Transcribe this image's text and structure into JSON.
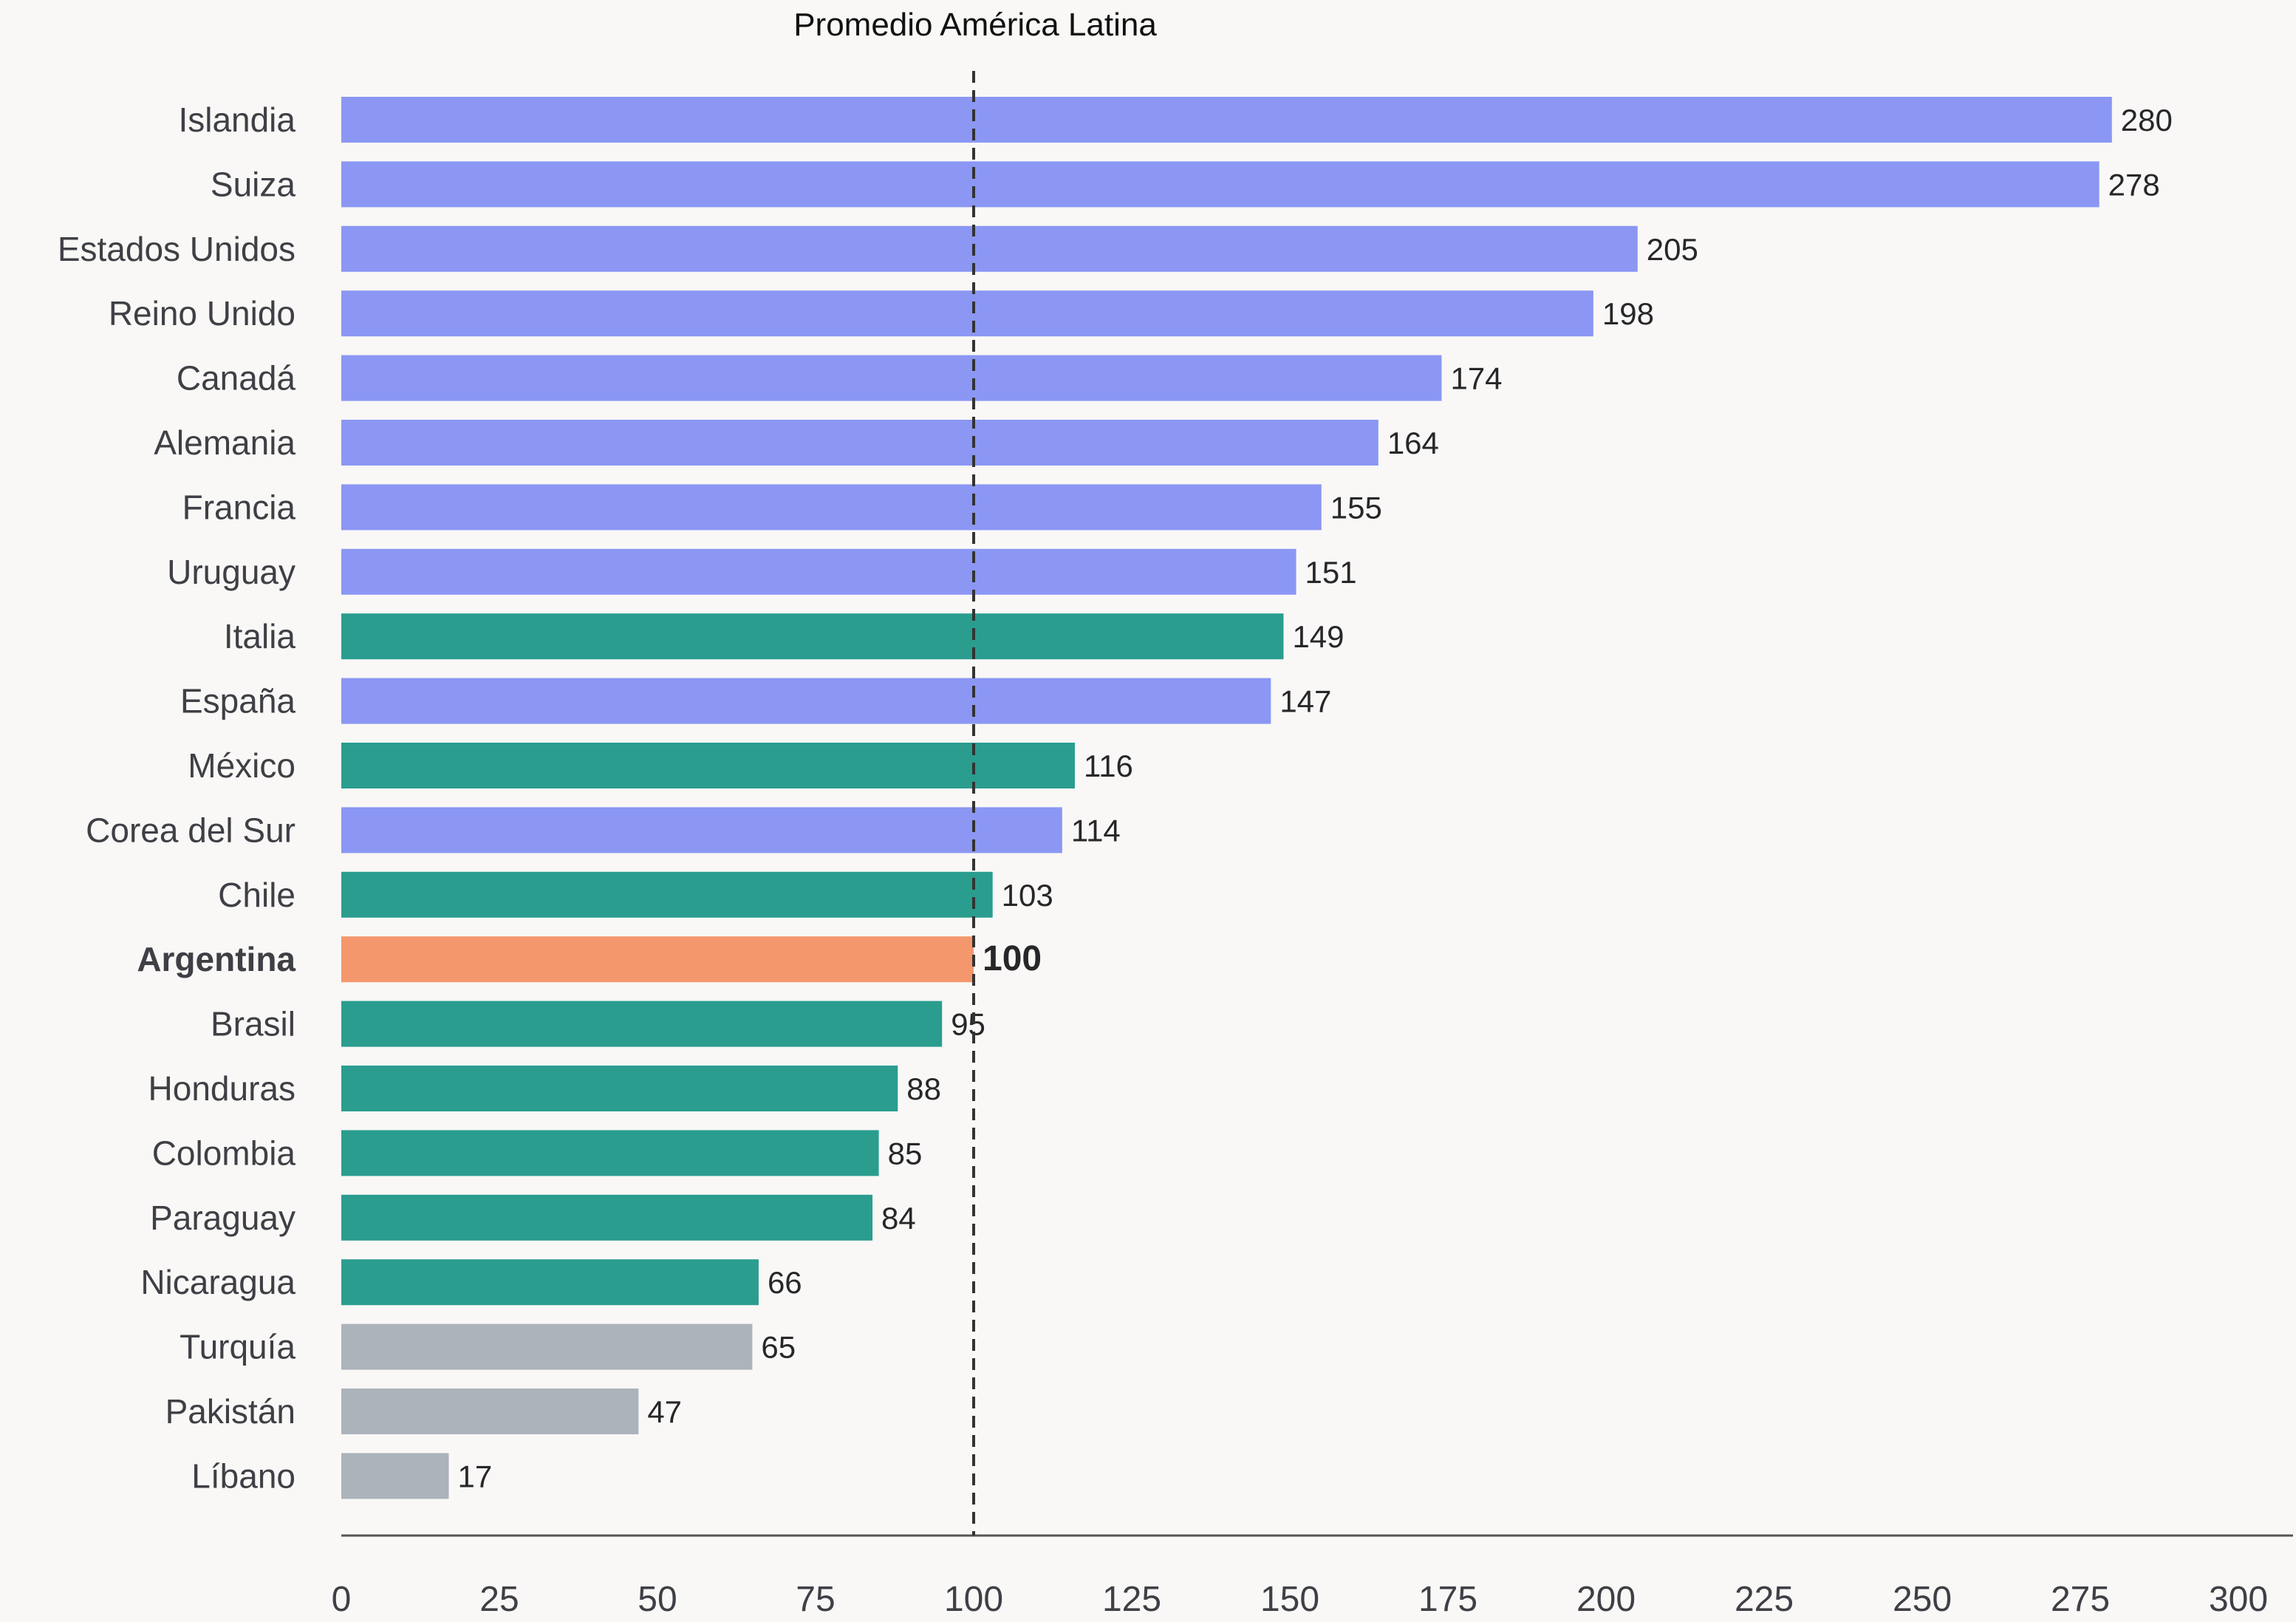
{
  "chart_data": {
    "type": "bar",
    "orientation": "horizontal",
    "categories": [
      "Islandia",
      "Suiza",
      "Estados Unidos",
      "Reino Unido",
      "Canadá",
      "Alemania",
      "Francia",
      "Uruguay",
      "Italia",
      "España",
      "México",
      "Corea del Sur",
      "Chile",
      "Argentina",
      "Brasil",
      "Honduras",
      "Colombia",
      "Paraguay",
      "Nicaragua",
      "Turquía",
      "Pakistán",
      "Líbano"
    ],
    "values": [
      280,
      278,
      205,
      198,
      174,
      164,
      155,
      151,
      149,
      147,
      116,
      114,
      103,
      100,
      95,
      88,
      85,
      84,
      66,
      65,
      47,
      17
    ],
    "value_labels": [
      "280",
      "278",
      "205",
      "198",
      "174",
      "164",
      "155",
      "151",
      "149",
      "147",
      "116",
      "114",
      "103",
      "100",
      "95",
      "88",
      "85",
      "84",
      "66",
      "65",
      "47",
      "17"
    ],
    "bar_colors": [
      "#8b97f3",
      "#8b97f3",
      "#8b97f3",
      "#8b97f3",
      "#8b97f3",
      "#8b97f3",
      "#8b97f3",
      "#8b97f3",
      "#2a9d8f",
      "#8b97f3",
      "#2a9d8f",
      "#8b97f3",
      "#2a9d8f",
      "#f4976c",
      "#2a9d8f",
      "#2a9d8f",
      "#2a9d8f",
      "#2a9d8f",
      "#2a9d8f",
      "#adb3bb",
      "#adb3bb",
      "#adb3bb"
    ],
    "highlight": "Argentina",
    "reference_line": {
      "value": 100,
      "label": "Promedio América Latina",
      "style": "dashed"
    },
    "xlim": [
      0,
      300
    ],
    "xticks": [
      0,
      25,
      50,
      75,
      100,
      125,
      150,
      175,
      200,
      225,
      250,
      275,
      300
    ],
    "xtick_labels": [
      "0",
      "25",
      "50",
      "75",
      "100",
      "125",
      "150",
      "175",
      "200",
      "225",
      "250",
      "275",
      "300"
    ],
    "title": "",
    "xlabel": "",
    "ylabel": "",
    "grid": false,
    "colors": {
      "background": "#f9f8f6",
      "axis": "#555555",
      "reference_line": "#333333"
    }
  }
}
